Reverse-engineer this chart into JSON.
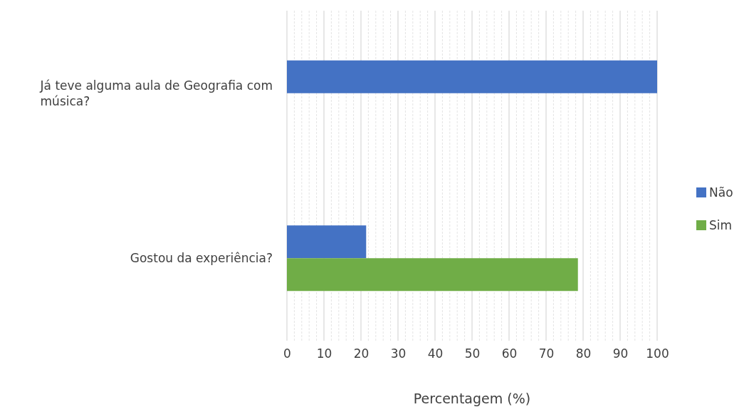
{
  "chart_data": {
    "type": "bar",
    "orientation": "horizontal",
    "xlabel": "Percentagem (%)",
    "categories": [
      "Já teve alguma aula de Geografia com música?",
      "Gostou da experiência?"
    ],
    "series": [
      {
        "name": "Não",
        "color": "#4472c4",
        "values": [
          100,
          21.4
        ]
      },
      {
        "name": "Sim",
        "color": "#70ad47",
        "values": [
          null,
          78.6
        ]
      }
    ],
    "xlim": [
      0,
      100
    ],
    "xticks": [
      0,
      {
        "value": 2,
        "label": null
      },
      {
        "value": 4,
        "label": null
      },
      {
        "value": 6,
        "label": null
      },
      {
        "value": 8,
        "label": null
      },
      10,
      {
        "value": 12,
        "label": null
      },
      {
        "value": 14,
        "label": null
      },
      {
        "value": 16,
        "label": null
      },
      {
        "value": 18,
        "label": null
      },
      20,
      {
        "value": 22,
        "label": null
      },
      {
        "value": 24,
        "label": null
      },
      {
        "value": 26,
        "label": null
      },
      {
        "value": 28,
        "label": null
      },
      30,
      {
        "value": 32,
        "label": null
      },
      {
        "value": 34,
        "label": null
      },
      {
        "value": 36,
        "label": null
      },
      {
        "value": 38,
        "label": null
      },
      40,
      {
        "value": 42,
        "label": null
      },
      {
        "value": 44,
        "label": null
      },
      {
        "value": 46,
        "label": null
      },
      {
        "value": 48,
        "label": null
      },
      50,
      {
        "value": 52,
        "label": null
      },
      {
        "value": 54,
        "label": null
      },
      {
        "value": 56,
        "label": null
      },
      {
        "value": 58,
        "label": null
      },
      60,
      {
        "value": 62,
        "label": null
      },
      {
        "value": 64,
        "label": null
      },
      {
        "value": 66,
        "label": null
      },
      {
        "value": 68,
        "label": null
      },
      70,
      {
        "value": 72,
        "label": null
      },
      {
        "value": 74,
        "label": null
      },
      {
        "value": 76,
        "label": null
      },
      {
        "value": 78,
        "label": null
      },
      80,
      {
        "value": 82,
        "label": null
      },
      {
        "value": 84,
        "label": null
      },
      {
        "value": 86,
        "label": null
      },
      {
        "value": 88,
        "label": null
      },
      90,
      {
        "value": 92,
        "label": null
      },
      {
        "value": 94,
        "label": null
      },
      {
        "value": 96,
        "label": null
      },
      {
        "value": 98,
        "label": null
      },
      100
    ],
    "grid": "x",
    "legend": "right"
  }
}
